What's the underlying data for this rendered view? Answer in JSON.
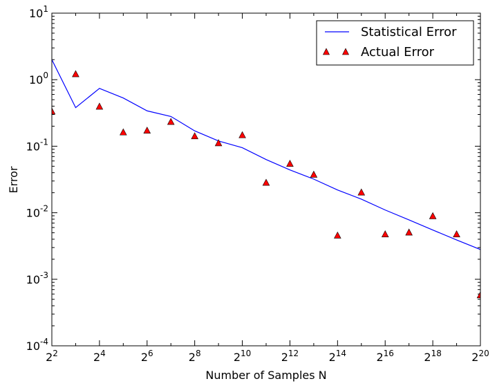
{
  "chart_data": {
    "type": "line",
    "xlabel": "Number of Samples N",
    "ylabel": "Error",
    "xscale": "log2",
    "yscale": "log10",
    "x_exponent_range": [
      2,
      20
    ],
    "y_exponent_range": [
      -4,
      1
    ],
    "x_ticks": [
      {
        "base": "2",
        "exp": "2",
        "e": 2
      },
      {
        "base": "2",
        "exp": "4",
        "e": 4
      },
      {
        "base": "2",
        "exp": "6",
        "e": 6
      },
      {
        "base": "2",
        "exp": "8",
        "e": 8
      },
      {
        "base": "2",
        "exp": "10",
        "e": 10
      },
      {
        "base": "2",
        "exp": "12",
        "e": 12
      },
      {
        "base": "2",
        "exp": "14",
        "e": 14
      },
      {
        "base": "2",
        "exp": "16",
        "e": 16
      },
      {
        "base": "2",
        "exp": "18",
        "e": 18
      },
      {
        "base": "2",
        "exp": "20",
        "e": 20
      }
    ],
    "y_ticks": [
      {
        "base": "10",
        "exp": "1",
        "e": 1
      },
      {
        "base": "10",
        "exp": "0",
        "e": 0
      },
      {
        "base": "10",
        "exp": "-1",
        "e": -1
      },
      {
        "base": "10",
        "exp": "-2",
        "e": -2
      },
      {
        "base": "10",
        "exp": "-3",
        "e": -3
      },
      {
        "base": "10",
        "exp": "-4",
        "e": -4
      }
    ],
    "legend_position": "top-right",
    "series": [
      {
        "name": "Statistical Error",
        "style": "line",
        "color": "#0000ff",
        "x_exp": [
          2,
          3,
          4,
          5,
          6,
          7,
          8,
          9,
          10,
          11,
          12,
          13,
          14,
          15,
          16,
          17,
          18,
          19,
          20
        ],
        "values": [
          2.0,
          0.38,
          0.74,
          0.53,
          0.34,
          0.28,
          0.17,
          0.12,
          0.095,
          0.063,
          0.044,
          0.032,
          0.022,
          0.016,
          0.011,
          0.0078,
          0.0055,
          0.0039,
          0.0028
        ]
      },
      {
        "name": "Actual Error",
        "style": "marker-triangle",
        "color": "#ff0000",
        "x_exp": [
          2,
          3,
          4,
          5,
          6,
          7,
          8,
          9,
          10,
          11,
          12,
          13,
          14,
          15,
          16,
          17,
          18,
          19,
          20
        ],
        "values": [
          0.33,
          1.2,
          0.39,
          0.16,
          0.17,
          0.23,
          0.14,
          0.11,
          0.145,
          0.028,
          0.054,
          0.037,
          0.0045,
          0.02,
          0.0047,
          0.005,
          0.0088,
          0.0047,
          0.00057
        ]
      }
    ]
  }
}
